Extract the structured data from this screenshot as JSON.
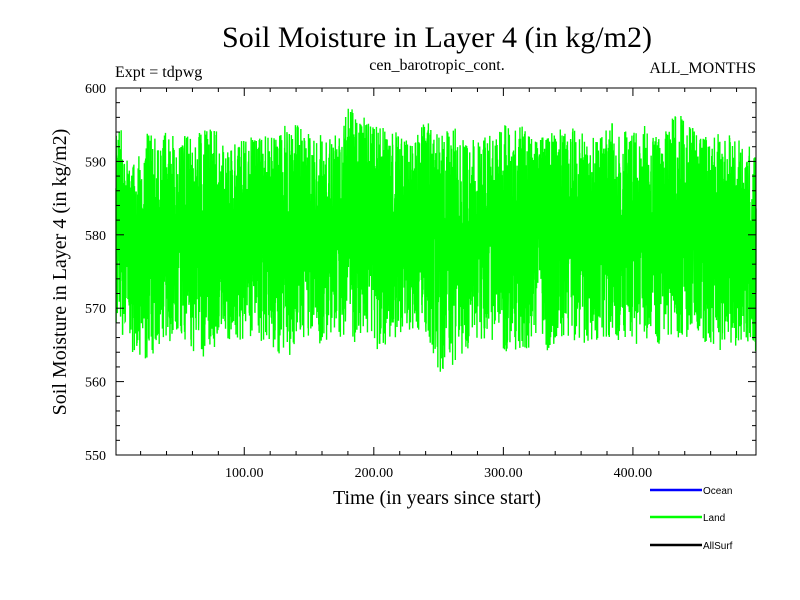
{
  "chart_data": {
    "type": "line",
    "title": "Soil Moisture in Layer 4 (in kg/m2)",
    "subtitle_left": "Expt = tdpwg",
    "subtitle_center": "cen_barotropic_cont.",
    "subtitle_right": "ALL_MONTHS",
    "xlabel": "Time (in years since start)",
    "ylabel": "Soil Moisture in Layer 4 (in kg/m2)",
    "xlim": [
      1,
      495
    ],
    "ylim": [
      550,
      600
    ],
    "x_ticks": [
      100,
      200,
      300,
      400
    ],
    "x_tick_labels": [
      "100.00",
      "200.00",
      "300.00",
      "400.00"
    ],
    "y_ticks": [
      550,
      560,
      570,
      580,
      590,
      600
    ],
    "y_tick_labels": [
      "550",
      "560",
      "570",
      "580",
      "590",
      "600"
    ],
    "series": [
      {
        "name": "Ocean",
        "color": "#0000ff",
        "values": []
      },
      {
        "name": "Land",
        "color": "#00ff00",
        "x_start": 1,
        "x_step": 12,
        "mean": [
          581,
          580,
          580,
          581,
          581,
          580,
          581,
          580,
          581,
          581,
          581,
          581,
          580,
          580,
          581,
          581,
          581,
          580,
          580,
          581,
          581,
          581,
          580,
          578,
          580,
          580,
          580,
          581,
          581,
          581,
          581,
          581,
          580,
          580,
          580,
          580,
          580,
          581,
          581,
          581,
          580,
          580
        ],
        "min": [
          568,
          564,
          563,
          565,
          566,
          564,
          563,
          566,
          565,
          566,
          564,
          563,
          566,
          565,
          566,
          565,
          566,
          564,
          566,
          567,
          566,
          560,
          563,
          565,
          566,
          564,
          564,
          565,
          564,
          566,
          565,
          565,
          566,
          564,
          566,
          565,
          566,
          566,
          565,
          564,
          565,
          564
        ],
        "max": [
          597,
          589,
          594,
          595,
          594,
          593,
          596,
          592,
          593,
          594,
          594,
          596,
          595,
          594,
          593,
          598,
          596,
          595,
          594,
          593,
          596,
          594,
          595,
          593,
          594,
          596,
          595,
          593,
          594,
          595,
          594,
          593,
          596,
          594,
          595,
          593,
          598,
          595,
          594,
          595,
          593,
          592
        ]
      },
      {
        "name": "AllSurf",
        "color": "#000000",
        "values": []
      }
    ],
    "legend_position": "bottom-right"
  }
}
